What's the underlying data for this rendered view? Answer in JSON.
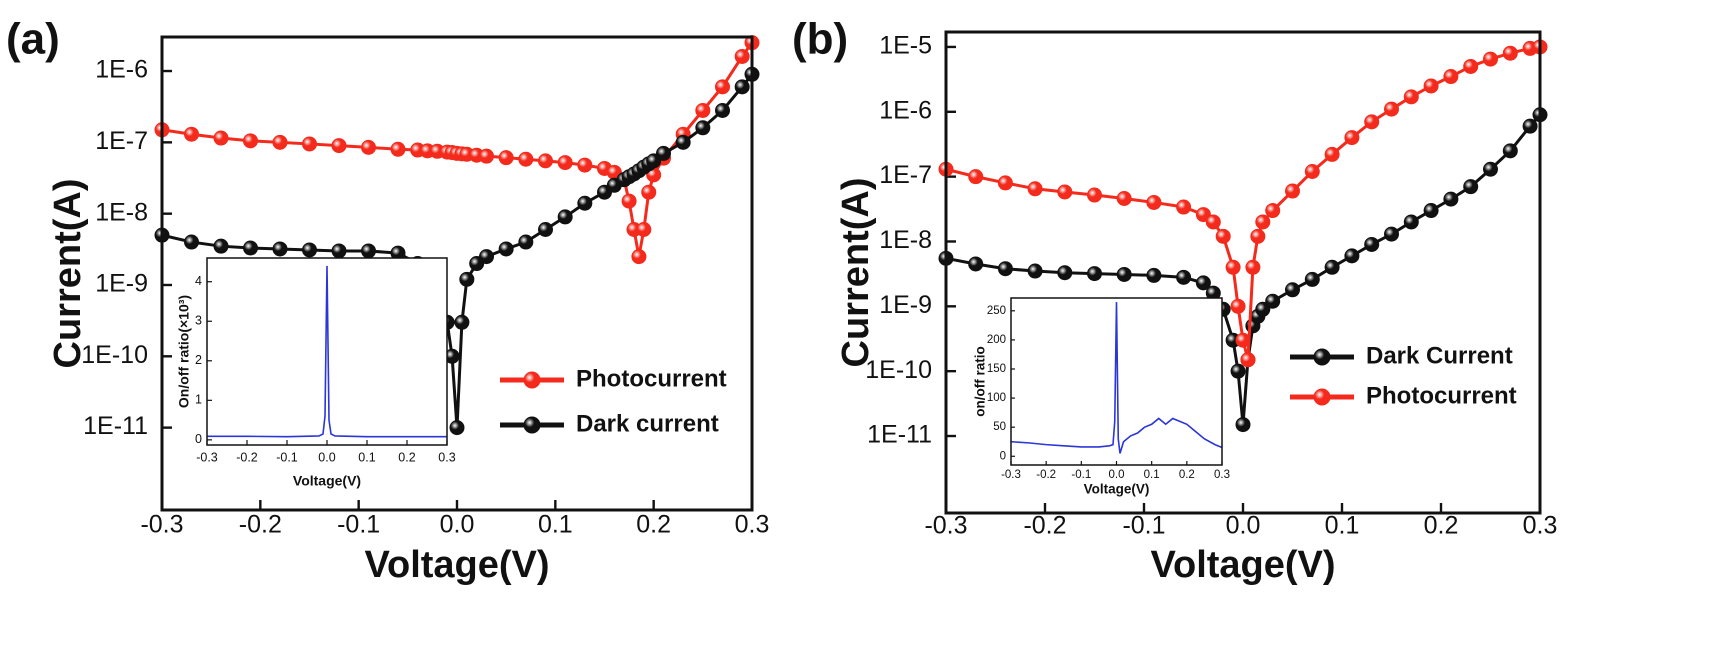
{
  "chart_data": [
    {
      "type": "line",
      "panel_label": "(a)",
      "xlabel": "Voltage(V)",
      "ylabel": "Current(A)",
      "log_y": true,
      "markers": true,
      "xlim": [
        -0.3,
        0.3
      ],
      "ylim": [
        3e-06,
        7e-13
      ],
      "xticks": [
        -0.3,
        -0.2,
        -0.1,
        {
          "value": 0,
          "label": "0.0"
        },
        0.1,
        0.2,
        0.3
      ],
      "yticks": [
        {
          "value": 1e-11,
          "label": "1E-11"
        },
        {
          "value": 1e-10,
          "label": "1E-10"
        },
        {
          "value": 1e-09,
          "label": "1E-9"
        },
        {
          "value": 1e-08,
          "label": "1E-8"
        },
        {
          "value": 1e-07,
          "label": "1E-7"
        },
        {
          "value": 1e-06,
          "label": "1E-6"
        }
      ],
      "x": [
        -0.3,
        -0.27,
        -0.24,
        -0.21,
        -0.18,
        -0.15,
        -0.12,
        -0.09,
        -0.06,
        -0.04,
        -0.03,
        -0.02,
        -0.01,
        -0.005,
        0,
        0.005,
        0.01,
        0.02,
        0.03,
        0.05,
        0.07,
        0.09,
        0.11,
        0.13,
        0.15,
        0.16,
        0.17,
        0.175,
        0.18,
        0.185,
        0.19,
        0.195,
        0.2,
        0.21,
        0.23,
        0.25,
        0.27,
        0.29,
        0.3
      ],
      "series": [
        {
          "name": "Photocurrent",
          "color": "#f42a1c",
          "values": [
            1.5e-07,
            1.3e-07,
            1.15e-07,
            1.05e-07,
            1e-07,
            9.5e-08,
            9e-08,
            8.5e-08,
            8e-08,
            7.8e-08,
            7.6e-08,
            7.5e-08,
            7.3e-08,
            7.2e-08,
            7e-08,
            6.9e-08,
            6.8e-08,
            6.6e-08,
            6.4e-08,
            6.1e-08,
            5.8e-08,
            5.5e-08,
            5.2e-08,
            4.8e-08,
            4.3e-08,
            3.8e-08,
            3e-08,
            1.5e-08,
            6e-09,
            2.5e-09,
            6e-09,
            2e-08,
            3.5e-08,
            6e-08,
            1.3e-07,
            2.8e-07,
            6e-07,
            1.6e-06,
            2.5e-06
          ]
        },
        {
          "name": "Dark current",
          "color": "#111111",
          "values": [
            5e-09,
            4e-09,
            3.5e-09,
            3.3e-09,
            3.2e-09,
            3.1e-09,
            3e-09,
            3e-09,
            2.8e-09,
            2e-09,
            1.3e-09,
            7e-10,
            3e-10,
            1e-10,
            1e-11,
            3e-10,
            1.2e-09,
            2e-09,
            2.5e-09,
            3.2e-09,
            4e-09,
            6e-09,
            9e-09,
            1.4e-08,
            2e-08,
            2.5e-08,
            3e-08,
            3.3e-08,
            3.6e-08,
            4e-08,
            4.5e-08,
            5e-08,
            5.5e-08,
            7e-08,
            1e-07,
            1.6e-07,
            2.8e-07,
            6e-07,
            9e-07
          ]
        }
      ]
    },
    {
      "type": "line",
      "xlabel": "Voltage(V)",
      "ylabel": "On/off ratio(×10³)",
      "xlim": [
        -0.3,
        0.3
      ],
      "ylim": [
        -0.13,
        4.6
      ],
      "xticks": [
        -0.3,
        -0.2,
        -0.1,
        {
          "value": 0,
          "label": "0.0"
        },
        0.1,
        0.2,
        0.3
      ],
      "yticks": [
        0,
        1,
        2,
        3,
        4
      ],
      "x": [
        -0.3,
        -0.2,
        -0.1,
        -0.02,
        -0.01,
        -0.005,
        0,
        0.005,
        0.01,
        0.02,
        0.1,
        0.2,
        0.3
      ],
      "series": [
        {
          "color": "#2b36d9",
          "values": [
            0.09,
            0.09,
            0.08,
            0.1,
            0.15,
            0.6,
            4.4,
            0.5,
            0.15,
            0.1,
            0.08,
            0.08,
            0.08
          ]
        }
      ]
    },
    {
      "type": "line",
      "panel_label": "(b)",
      "xlabel": "Voltage(V)",
      "ylabel": "Current(A)",
      "log_y": true,
      "markers": true,
      "xlim": [
        -0.3,
        0.3
      ],
      "ylim": [
        1.7e-05,
        6.5e-13
      ],
      "xticks": [
        -0.3,
        -0.2,
        -0.1,
        {
          "value": 0,
          "label": "0.0"
        },
        0.1,
        0.2,
        0.3
      ],
      "yticks": [
        {
          "value": 1e-11,
          "label": "1E-11"
        },
        {
          "value": 1e-10,
          "label": "1E-10"
        },
        {
          "value": 1e-09,
          "label": "1E-9"
        },
        {
          "value": 1e-08,
          "label": "1E-8"
        },
        {
          "value": 1e-07,
          "label": "1E-7"
        },
        {
          "value": 1e-06,
          "label": "1E-6"
        },
        {
          "value": 1e-05,
          "label": "1E-5"
        }
      ],
      "x": [
        -0.3,
        -0.27,
        -0.24,
        -0.21,
        -0.18,
        -0.15,
        -0.12,
        -0.09,
        -0.06,
        -0.04,
        -0.03,
        -0.02,
        -0.01,
        -0.005,
        0,
        0.005,
        0.01,
        0.015,
        0.02,
        0.03,
        0.05,
        0.07,
        0.09,
        0.11,
        0.13,
        0.15,
        0.17,
        0.19,
        0.21,
        0.23,
        0.25,
        0.27,
        0.29,
        0.3
      ],
      "series": [
        {
          "name": "Dark Current",
          "color": "#111111",
          "values": [
            5.5e-09,
            4.5e-09,
            3.8e-09,
            3.5e-09,
            3.3e-09,
            3.2e-09,
            3.1e-09,
            3e-09,
            2.8e-09,
            2.3e-09,
            1.6e-09,
            9e-10,
            3e-10,
            1e-10,
            1.5e-11,
            1.5e-10,
            5e-10,
            7e-10,
            9e-10,
            1.2e-09,
            1.8e-09,
            2.6e-09,
            4e-09,
            6e-09,
            9e-09,
            1.3e-08,
            2e-08,
            3e-08,
            4.5e-08,
            7e-08,
            1.3e-07,
            2.5e-07,
            6e-07,
            9e-07
          ]
        },
        {
          "name": "Photocurrent",
          "color": "#f42a1c",
          "values": [
            1.3e-07,
            1e-07,
            8e-08,
            6.5e-08,
            5.8e-08,
            5.2e-08,
            4.6e-08,
            4e-08,
            3.4e-08,
            2.6e-08,
            2e-08,
            1.2e-08,
            4e-09,
            1e-09,
            3e-10,
            1.5e-10,
            4e-09,
            1.2e-08,
            2e-08,
            3e-08,
            6e-08,
            1.2e-07,
            2.2e-07,
            4e-07,
            7e-07,
            1.1e-06,
            1.7e-06,
            2.5e-06,
            3.5e-06,
            5e-06,
            6.5e-06,
            8e-06,
            9.5e-06,
            1e-05
          ]
        }
      ]
    },
    {
      "type": "line",
      "xlabel": "Voltage(V)",
      "ylabel": "on/off ratio",
      "xlim": [
        -0.3,
        0.3
      ],
      "ylim": [
        -15,
        272
      ],
      "xticks": [
        -0.3,
        -0.2,
        -0.1,
        {
          "value": 0,
          "label": "0.0"
        },
        0.1,
        0.2,
        0.3
      ],
      "yticks": [
        0,
        50,
        100,
        150,
        200,
        250
      ],
      "x": [
        -0.3,
        -0.25,
        -0.2,
        -0.15,
        -0.1,
        -0.05,
        -0.02,
        -0.01,
        -0.005,
        0,
        0.005,
        0.01,
        0.02,
        0.04,
        0.06,
        0.08,
        0.1,
        0.12,
        0.14,
        0.16,
        0.18,
        0.2,
        0.22,
        0.25,
        0.28,
        0.3
      ],
      "series": [
        {
          "color": "#2b36d9",
          "values": [
            25,
            23,
            20,
            18,
            16,
            16,
            18,
            20,
            60,
            265,
            30,
            5,
            25,
            35,
            40,
            50,
            55,
            65,
            55,
            65,
            60,
            55,
            45,
            30,
            20,
            15
          ]
        }
      ]
    }
  ]
}
